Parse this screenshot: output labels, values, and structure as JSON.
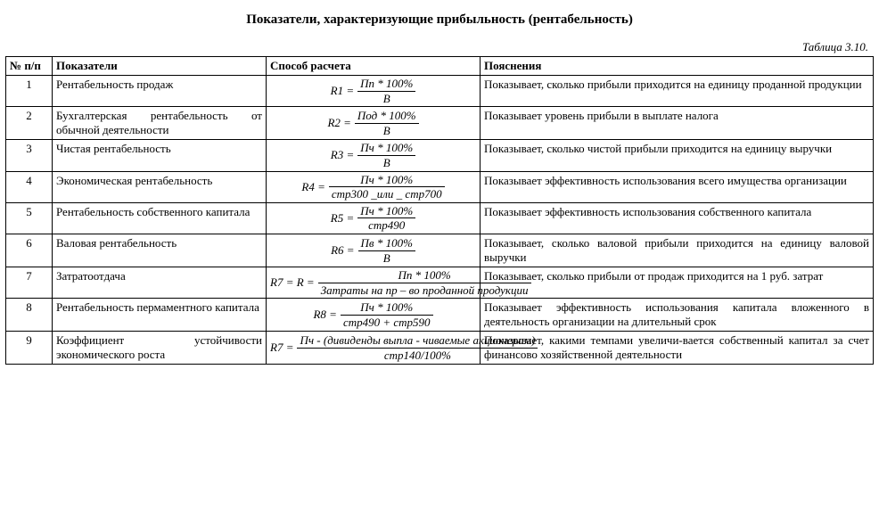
{
  "title": "Показатели, характеризующие прибыльность (рентабельность)",
  "caption": "Таблица 3.10.",
  "columns": {
    "c1": "№ п/п",
    "c2": "Показатели",
    "c3": "Способ расчета",
    "c4": "Пояснения"
  },
  "rows": [
    {
      "n": "1",
      "name": "Рентабельность продаж",
      "lhs": "R1 =",
      "num": "Пп * 100%",
      "den": "В",
      "expl": "Показывает, сколько прибыли приходится на единицу проданной продукции"
    },
    {
      "n": "2",
      "name": "Бухгалтерская рентабельность от обычной деятельности",
      "lhs": "R2 =",
      "num": "Под * 100%",
      "den": "В",
      "expl": "Показывает уровень прибыли в выплате налога"
    },
    {
      "n": "3",
      "name": "Чистая рентабельность",
      "lhs": "R3 =",
      "num": "Пч * 100%",
      "den": "В",
      "expl": "Показывает, сколько чистой прибыли приходится на единицу выручки"
    },
    {
      "n": "4",
      "name": "Экономическая рентабельность",
      "lhs": "R4 =",
      "num": "Пч * 100%",
      "den": "стр300 _или _ стр700",
      "expl": "Показывает эффективность использования всего имущества организации"
    },
    {
      "n": "5",
      "name": "Рентабельность собственного капитала",
      "lhs": "R5 =",
      "num": "Пч * 100%",
      "den": "стр490",
      "expl": "Показывает эффективность использования собственного капитала"
    },
    {
      "n": "6",
      "name": "Валовая рентабельность",
      "lhs": "R6 =",
      "num": "Пв * 100%",
      "den": "В",
      "expl": "Показывает, сколько валовой прибыли приходится на единицу валовой выручки"
    },
    {
      "n": "7",
      "name": "Затратоотдача",
      "lhs": "R7 = R =",
      "num": "Пп * 100%",
      "den": "Затраты на пр – во проданной продукции",
      "expl": "Показывает, сколько прибыли от продаж приходится на 1 руб. затрат"
    },
    {
      "n": "8",
      "name": "Рентабельность пермаментного капитала",
      "lhs": "R8 =",
      "num": "Пч * 100%",
      "den": "стр490 + стр590",
      "expl": "Показывает эффективность использования капитала вложенного в деятельность организации на длительный срок"
    },
    {
      "n": "9",
      "name": "Коэффициент устойчивости экономического роста",
      "lhs": "R7 =",
      "num": "Пч - (дивиденды выпла - чиваемые акционерам)",
      "den": "стр140/100%",
      "expl": "Показывает, какими темпами увеличи-вается собственный капитал за счет финансово хозяйственной деятельности"
    }
  ]
}
